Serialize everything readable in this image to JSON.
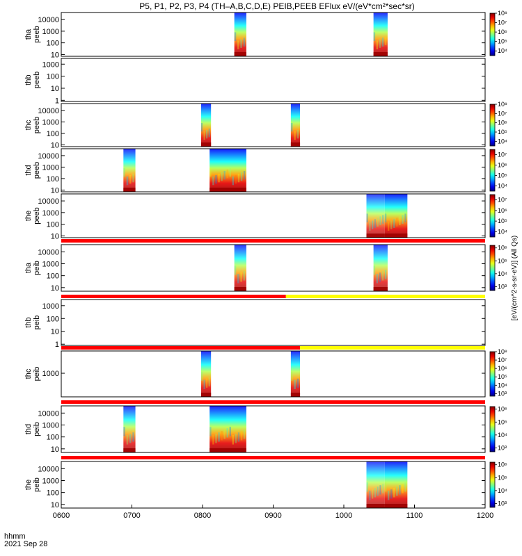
{
  "chart_data": {
    "type": "heatmap",
    "title": "P5, P1, P2, P3, P4 (TH–A,B,C,D,E) PEIB,PEEB EFlux eV/(eV*cm²*sec*sr)",
    "x_label_row": "hhmm",
    "date_label": "2021 Sep 28",
    "x_ticks": [
      "0600",
      "0700",
      "0800",
      "0900",
      "1000",
      "1100",
      "1200"
    ],
    "x_range_hours": [
      6,
      12
    ],
    "colorbar_label": "[eV/(cm^2-s-sr-eV)] (All Qs)",
    "panels": [
      {
        "label1": "tha",
        "label2": "peeb",
        "ylog": true,
        "ytick_labels": [
          "10",
          "100",
          "1000",
          "10000"
        ],
        "ytick_values": [
          10,
          100,
          1000,
          10000
        ],
        "ylim": [
          7,
          40000
        ],
        "colorbar": {
          "labels": [
            "10⁴",
            "10⁵",
            "10⁶",
            "10⁷",
            "10⁸"
          ],
          "log_range": [
            3.5,
            8
          ]
        },
        "bursts": [
          {
            "start": 8.45,
            "end": 8.62,
            "level": 0.7
          },
          {
            "start": 10.42,
            "end": 10.62,
            "level": 0.65
          }
        ]
      },
      {
        "label1": "thb",
        "label2": "peeb",
        "ylog": true,
        "ytick_labels": [
          "1",
          "10",
          "100",
          "1000"
        ],
        "ytick_values": [
          1,
          10,
          100,
          1000
        ],
        "ylim": [
          0.8,
          3000
        ],
        "colorbar": null,
        "bursts": []
      },
      {
        "label1": "thc",
        "label2": "peeb",
        "ylog": true,
        "ytick_labels": [
          "10",
          "100",
          "1000",
          "10000"
        ],
        "ytick_values": [
          10,
          100,
          1000,
          10000
        ],
        "ylim": [
          7,
          40000
        ],
        "colorbar": {
          "labels": [
            "10⁴",
            "10⁵",
            "10⁶",
            "10⁷",
            "10⁸"
          ],
          "log_range": [
            3.5,
            8
          ]
        },
        "bursts": [
          {
            "start": 7.98,
            "end": 8.12,
            "level": 0.7
          },
          {
            "start": 9.25,
            "end": 9.38,
            "level": 0.7
          }
        ]
      },
      {
        "label1": "thd",
        "label2": "peeb",
        "ylog": true,
        "ytick_labels": [
          "10",
          "100",
          "1000",
          "10000"
        ],
        "ytick_values": [
          10,
          100,
          1000,
          10000
        ],
        "ylim": [
          7,
          40000
        ],
        "colorbar": {
          "labels": [
            "10⁴",
            "10⁵",
            "10⁶",
            "10⁷"
          ],
          "log_range": [
            3.5,
            7.5
          ]
        },
        "bursts": [
          {
            "start": 6.88,
            "end": 7.05,
            "level": 0.6
          },
          {
            "start": 8.1,
            "end": 8.62,
            "level": 0.8
          }
        ]
      },
      {
        "label1": "the",
        "label2": "peeb",
        "ylog": true,
        "ytick_labels": [
          "10",
          "100",
          "1000",
          "10000"
        ],
        "ytick_values": [
          10,
          100,
          1000,
          10000
        ],
        "ylim": [
          7,
          40000
        ],
        "colorbar": {
          "labels": [
            "10⁴",
            "10⁵",
            "10⁶",
            "10⁷"
          ],
          "log_range": [
            3.5,
            7.5
          ]
        },
        "bursts": [
          {
            "start": 10.32,
            "end": 10.58,
            "level": 0.45
          },
          {
            "start": 10.58,
            "end": 10.9,
            "level": 0.75
          }
        ]
      },
      {
        "label1": "tha",
        "label2": "peib",
        "ylog": true,
        "ytick_labels": [
          "10",
          "100",
          "1000",
          "10000"
        ],
        "ytick_values": [
          10,
          100,
          1000,
          10000
        ],
        "ylim": [
          5,
          40000
        ],
        "colorbar": {
          "labels": [
            "10³",
            "10⁴",
            "10⁵",
            "10⁶"
          ],
          "log_range": [
            2.7,
            6.2
          ]
        },
        "bursts": [
          {
            "start": 8.45,
            "end": 8.62,
            "level": 0.55
          },
          {
            "start": 10.42,
            "end": 10.62,
            "level": 0.5
          }
        ]
      },
      {
        "label1": "thb",
        "label2": "peib",
        "ylog": true,
        "ytick_labels": [
          "1",
          "10",
          "100",
          "1000"
        ],
        "ytick_values": [
          1,
          10,
          100,
          1000
        ],
        "ylim": [
          0.8,
          3000
        ],
        "colorbar": null,
        "bursts": []
      },
      {
        "label1": "thc",
        "label2": "peib",
        "ylog": true,
        "ytick_labels": [
          "1000"
        ],
        "ytick_values": [
          1000
        ],
        "ylim": [
          20,
          40000
        ],
        "colorbar": {
          "labels": [
            "10³",
            "10⁴",
            "10⁵",
            "10⁶",
            "10⁷",
            "10⁸"
          ],
          "log_range": [
            2.7,
            8
          ]
        },
        "bursts": [
          {
            "start": 7.98,
            "end": 8.12,
            "level": 0.65
          },
          {
            "start": 9.25,
            "end": 9.38,
            "level": 0.65
          }
        ]
      },
      {
        "label1": "thd",
        "label2": "peib",
        "ylog": true,
        "ytick_labels": [
          "10",
          "100",
          "1000",
          "10000"
        ],
        "ytick_values": [
          10,
          100,
          1000,
          10000
        ],
        "ylim": [
          5,
          40000
        ],
        "colorbar": {
          "labels": [
            "10³",
            "10⁴",
            "10⁵",
            "10⁶"
          ],
          "log_range": [
            2.7,
            6.2
          ]
        },
        "bursts": [
          {
            "start": 6.88,
            "end": 7.05,
            "level": 0.55
          },
          {
            "start": 8.1,
            "end": 8.62,
            "level": 0.75
          }
        ]
      },
      {
        "label1": "the",
        "label2": "peib",
        "ylog": true,
        "ytick_labels": [
          "10",
          "100",
          "1000",
          "10000"
        ],
        "ytick_values": [
          10,
          100,
          1000,
          10000
        ],
        "ylim": [
          5,
          40000
        ],
        "colorbar": {
          "labels": [
            "10³",
            "10⁴",
            "10⁵",
            "10⁶"
          ],
          "log_range": [
            2.7,
            6.2
          ]
        },
        "bursts": [
          {
            "start": 10.32,
            "end": 10.58,
            "level": 0.45
          },
          {
            "start": 10.58,
            "end": 10.9,
            "level": 0.7
          }
        ]
      }
    ],
    "flag_bars": [
      {
        "after_panel": 4,
        "segments": [
          {
            "start": 6,
            "end": 12,
            "color": "#ff0000"
          }
        ]
      },
      {
        "after_panel": 5,
        "segments": [
          {
            "start": 6,
            "end": 9.18,
            "color": "#ff0000"
          },
          {
            "start": 9.18,
            "end": 12,
            "color": "#ffff00"
          }
        ]
      },
      {
        "after_panel": 6,
        "segments": [
          {
            "start": 6,
            "end": 9.38,
            "color": "#ff0000"
          },
          {
            "start": 9.38,
            "end": 12,
            "color": "#ffff00"
          }
        ]
      },
      {
        "after_panel": 7,
        "segments": [
          {
            "start": 6,
            "end": 12,
            "color": "#ff0000"
          }
        ]
      },
      {
        "after_panel": 8,
        "segments": [
          {
            "start": 6,
            "end": 12,
            "color": "#ff0000"
          }
        ]
      }
    ]
  }
}
